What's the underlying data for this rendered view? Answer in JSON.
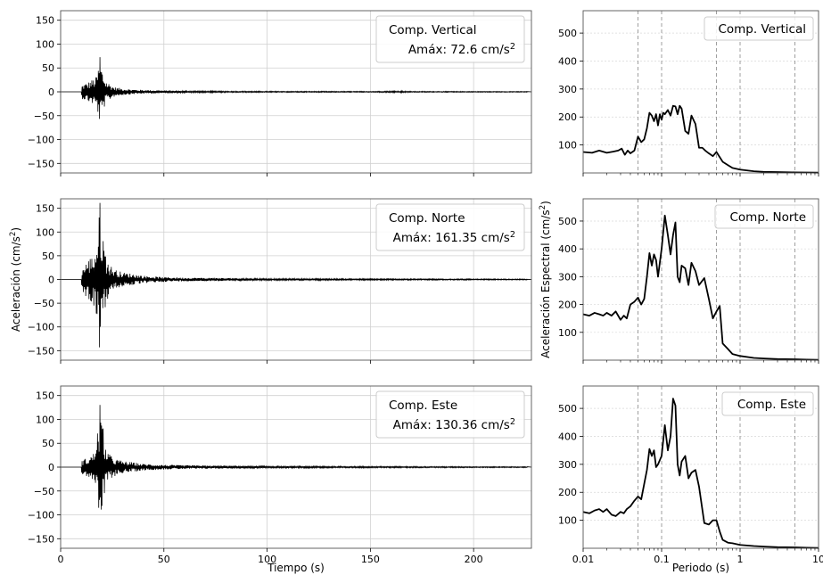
{
  "chart_data": [
    {
      "type": "line",
      "panel": "accelerogram",
      "component": "vertical",
      "legend_title": "Comp. Vertical",
      "legend_value": "Amáx: 72.6 cm/s",
      "legend_sup": "2",
      "ylim": [
        -170,
        170
      ],
      "yticks": [
        150,
        100,
        50,
        0,
        -50,
        -100,
        -150
      ],
      "ytick_labels": [
        "150",
        "100",
        "50",
        "0",
        "−50",
        "−100",
        "−150"
      ],
      "xlim": [
        0,
        228
      ],
      "xticks": [
        0,
        50,
        100,
        150,
        200
      ],
      "xtick_labels": [],
      "signal_start_s": 10,
      "peak_time_s": 19,
      "pga": 72.6,
      "envelope": [
        [
          10,
          14
        ],
        [
          13,
          20
        ],
        [
          15,
          25
        ],
        [
          17,
          30
        ],
        [
          18,
          45
        ],
        [
          19,
          68
        ],
        [
          20,
          50
        ],
        [
          21,
          34
        ],
        [
          22,
          24
        ],
        [
          24,
          16
        ],
        [
          26,
          10
        ],
        [
          30,
          7
        ],
        [
          35,
          5
        ],
        [
          40,
          4
        ],
        [
          50,
          3
        ],
        [
          60,
          2
        ],
        [
          80,
          1.5
        ],
        [
          100,
          1.2
        ],
        [
          150,
          1
        ],
        [
          165,
          2
        ],
        [
          170,
          1
        ],
        [
          226,
          0.8
        ]
      ],
      "grid": true,
      "legend_position": "upper right"
    },
    {
      "type": "line",
      "panel": "accelerogram",
      "component": "norte",
      "legend_title": "Comp. Norte",
      "legend_value": "Amáx: 161.35 cm/s",
      "legend_sup": "2",
      "ylabel": "Aceleración (cm/s",
      "ylabel_sup": "2",
      "ylabel_tail": ")",
      "ylim": [
        -170,
        170
      ],
      "yticks": [
        150,
        100,
        50,
        0,
        -50,
        -100,
        -150
      ],
      "ytick_labels": [
        "150",
        "100",
        "50",
        "0",
        "−50",
        "−100",
        "−150"
      ],
      "xlim": [
        0,
        228
      ],
      "xticks": [
        0,
        50,
        100,
        150,
        200
      ],
      "xtick_labels": [],
      "signal_start_s": 10,
      "peak_time_s": 19,
      "pga": 161.35,
      "envelope": [
        [
          10,
          20
        ],
        [
          12,
          35
        ],
        [
          14,
          45
        ],
        [
          16,
          55
        ],
        [
          18,
          90
        ],
        [
          19,
          160
        ],
        [
          20,
          125
        ],
        [
          21,
          80
        ],
        [
          22,
          50
        ],
        [
          24,
          30
        ],
        [
          27,
          20
        ],
        [
          30,
          15
        ],
        [
          35,
          12
        ],
        [
          40,
          8
        ],
        [
          50,
          5
        ],
        [
          60,
          4
        ],
        [
          80,
          3
        ],
        [
          100,
          2
        ],
        [
          160,
          1.5
        ],
        [
          226,
          1
        ]
      ],
      "grid": true,
      "legend_position": "upper right"
    },
    {
      "type": "line",
      "panel": "accelerogram",
      "component": "este",
      "legend_title": "Comp. Este",
      "legend_value": "Amáx: 130.36 cm/s",
      "legend_sup": "2",
      "xlabel": "Tiempo (s)",
      "ylim": [
        -170,
        170
      ],
      "yticks": [
        150,
        100,
        50,
        0,
        -50,
        -100,
        -150
      ],
      "ytick_labels": [
        "150",
        "100",
        "50",
        "0",
        "−50",
        "−100",
        "−150"
      ],
      "xlim": [
        0,
        228
      ],
      "xticks": [
        0,
        50,
        100,
        150,
        200
      ],
      "xtick_labels": [
        "0",
        "50",
        "100",
        "150",
        "200"
      ],
      "signal_start_s": 10,
      "peak_time_s": 19,
      "pga": 130.36,
      "envelope": [
        [
          10,
          14
        ],
        [
          12,
          18
        ],
        [
          14,
          22
        ],
        [
          16,
          30
        ],
        [
          18,
          80
        ],
        [
          19,
          120
        ],
        [
          20,
          100
        ],
        [
          21,
          70
        ],
        [
          22,
          40
        ],
        [
          24,
          25
        ],
        [
          27,
          17
        ],
        [
          30,
          13
        ],
        [
          35,
          10
        ],
        [
          40,
          7
        ],
        [
          50,
          5
        ],
        [
          60,
          4
        ],
        [
          80,
          3
        ],
        [
          100,
          2
        ],
        [
          160,
          1.5
        ],
        [
          226,
          1
        ]
      ],
      "grid": true,
      "legend_position": "upper right"
    },
    {
      "type": "line",
      "panel": "response_spectrum",
      "component": "vertical",
      "legend_title": "Comp. Vertical",
      "xscale": "log",
      "xlim": [
        0.01,
        10
      ],
      "ylim": [
        0,
        580
      ],
      "yticks": [
        100,
        200,
        300,
        400,
        500
      ],
      "ytick_labels": [
        "100",
        "200",
        "300",
        "400",
        "500"
      ],
      "xtick_labels": [],
      "vlines": [
        0.05,
        0.1,
        0.5,
        1,
        5
      ],
      "periods": [
        0.01,
        0.013,
        0.016,
        0.02,
        0.024,
        0.028,
        0.031,
        0.034,
        0.037,
        0.04,
        0.045,
        0.05,
        0.055,
        0.06,
        0.065,
        0.07,
        0.075,
        0.08,
        0.085,
        0.09,
        0.095,
        0.1,
        0.105,
        0.11,
        0.12,
        0.13,
        0.14,
        0.15,
        0.16,
        0.17,
        0.18,
        0.2,
        0.22,
        0.24,
        0.27,
        0.3,
        0.33,
        0.36,
        0.4,
        0.45,
        0.5,
        0.6,
        0.7,
        0.8,
        1.0,
        1.5,
        2,
        3,
        5,
        7,
        10
      ],
      "sa": [
        75,
        72,
        80,
        72,
        76,
        80,
        87,
        65,
        80,
        70,
        80,
        130,
        110,
        120,
        160,
        215,
        205,
        185,
        210,
        170,
        210,
        190,
        215,
        210,
        225,
        205,
        240,
        238,
        210,
        240,
        230,
        150,
        140,
        205,
        175,
        90,
        90,
        80,
        70,
        60,
        75,
        40,
        28,
        18,
        12,
        6,
        4,
        3,
        2,
        1.5,
        1
      ],
      "legend_position": "upper right"
    },
    {
      "type": "line",
      "panel": "response_spectrum",
      "component": "norte",
      "legend_title": "Comp. Norte",
      "ylabel": "Aceleración Espectral (cm/s",
      "ylabel_sup": "2",
      "ylabel_tail": ")",
      "xscale": "log",
      "xlim": [
        0.01,
        10
      ],
      "ylim": [
        0,
        580
      ],
      "yticks": [
        100,
        200,
        300,
        400,
        500
      ],
      "ytick_labels": [
        "100",
        "200",
        "300",
        "400",
        "500"
      ],
      "xtick_labels": [],
      "vlines": [
        0.05,
        0.1,
        0.5,
        1,
        5
      ],
      "periods": [
        0.01,
        0.012,
        0.014,
        0.016,
        0.018,
        0.02,
        0.023,
        0.026,
        0.03,
        0.033,
        0.036,
        0.04,
        0.045,
        0.05,
        0.055,
        0.06,
        0.065,
        0.07,
        0.075,
        0.08,
        0.085,
        0.09,
        0.1,
        0.11,
        0.12,
        0.13,
        0.14,
        0.15,
        0.16,
        0.17,
        0.18,
        0.2,
        0.22,
        0.24,
        0.27,
        0.3,
        0.35,
        0.4,
        0.45,
        0.5,
        0.55,
        0.6,
        0.7,
        0.8,
        1.0,
        1.5,
        2,
        3,
        5,
        7,
        10
      ],
      "sa": [
        165,
        160,
        170,
        165,
        160,
        170,
        160,
        175,
        145,
        160,
        150,
        200,
        210,
        225,
        200,
        220,
        300,
        385,
        340,
        380,
        360,
        300,
        400,
        520,
        450,
        380,
        450,
        495,
        300,
        280,
        340,
        330,
        270,
        350,
        320,
        270,
        295,
        220,
        150,
        175,
        195,
        60,
        40,
        22,
        15,
        8,
        6,
        4,
        3,
        2,
        1
      ],
      "legend_position": "upper right"
    },
    {
      "type": "line",
      "panel": "response_spectrum",
      "component": "este",
      "legend_title": "Comp. Este",
      "xlabel": "Periodo (s)",
      "xscale": "log",
      "xlim": [
        0.01,
        10
      ],
      "ylim": [
        0,
        580
      ],
      "yticks": [
        100,
        200,
        300,
        400,
        500
      ],
      "ytick_labels": [
        "100",
        "200",
        "300",
        "400",
        "500"
      ],
      "xticks": [
        0.01,
        0.1,
        1,
        10
      ],
      "xtick_labels": [
        "0.01",
        "0.1",
        "1",
        "10"
      ],
      "vlines": [
        0.05,
        0.1,
        0.5,
        1,
        5
      ],
      "periods": [
        0.01,
        0.012,
        0.014,
        0.016,
        0.018,
        0.02,
        0.023,
        0.026,
        0.03,
        0.033,
        0.036,
        0.04,
        0.045,
        0.05,
        0.055,
        0.06,
        0.065,
        0.07,
        0.075,
        0.08,
        0.085,
        0.09,
        0.1,
        0.11,
        0.12,
        0.13,
        0.14,
        0.15,
        0.16,
        0.17,
        0.18,
        0.2,
        0.22,
        0.24,
        0.27,
        0.3,
        0.35,
        0.4,
        0.45,
        0.5,
        0.55,
        0.6,
        0.7,
        0.8,
        1.0,
        1.5,
        2,
        3,
        5,
        7,
        10
      ],
      "sa": [
        130,
        125,
        135,
        140,
        130,
        140,
        120,
        115,
        130,
        125,
        140,
        150,
        170,
        185,
        175,
        230,
        280,
        355,
        330,
        350,
        290,
        300,
        330,
        440,
        350,
        400,
        535,
        510,
        300,
        260,
        310,
        330,
        250,
        270,
        280,
        220,
        90,
        85,
        100,
        100,
        60,
        30,
        20,
        18,
        12,
        8,
        6,
        4,
        3,
        2,
        1
      ],
      "legend_position": "upper right"
    }
  ]
}
